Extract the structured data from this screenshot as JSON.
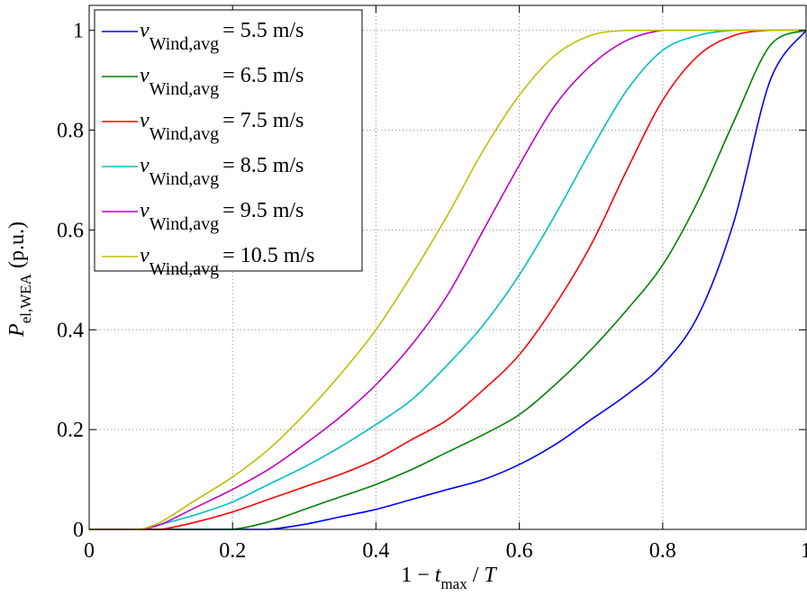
{
  "chart_data": {
    "type": "line",
    "title": "",
    "xlabel_parts": {
      "prefix": "1 − ",
      "t": "t",
      "t_sub": "max",
      "slash": " / ",
      "T": "T"
    },
    "ylabel_parts": {
      "P": "P",
      "P_sub": "el,WEA",
      "unit": " (p.u.)"
    },
    "xlim": [
      0,
      1
    ],
    "ylim": [
      0,
      1.05
    ],
    "xticks": [
      0,
      0.2,
      0.4,
      0.6,
      0.8,
      1
    ],
    "xtick_labels": [
      "0",
      "0.2",
      "0.4",
      "0.6",
      "0.8",
      "1"
    ],
    "yticks": [
      0,
      0.2,
      0.4,
      0.6,
      0.8,
      1
    ],
    "ytick_labels": [
      "0",
      "0.2",
      "0.4",
      "0.6",
      "0.8",
      "1"
    ],
    "grid": true,
    "legend_position": "top-left",
    "legend_var": "v",
    "legend_sub": "Wind,avg",
    "x": [
      0,
      0.05,
      0.07,
      0.1,
      0.15,
      0.2,
      0.25,
      0.3,
      0.35,
      0.4,
      0.45,
      0.5,
      0.55,
      0.6,
      0.65,
      0.7,
      0.75,
      0.8,
      0.85,
      0.9,
      0.95,
      1
    ],
    "series": [
      {
        "name": "= 5.5 m/s",
        "color": "#0000ff",
        "values": [
          0,
          0,
          0,
          0,
          0,
          0,
          0,
          0.01,
          0.025,
          0.04,
          0.06,
          0.08,
          0.1,
          0.13,
          0.17,
          0.22,
          0.27,
          0.33,
          0.43,
          0.62,
          0.9,
          1
        ]
      },
      {
        "name": "= 6.5 m/s",
        "color": "#008000",
        "values": [
          0,
          0,
          0,
          0,
          0,
          0,
          0.015,
          0.04,
          0.065,
          0.09,
          0.12,
          0.155,
          0.19,
          0.23,
          0.29,
          0.36,
          0.44,
          0.53,
          0.66,
          0.82,
          0.97,
          1
        ]
      },
      {
        "name": "= 7.5 m/s",
        "color": "#ff0000",
        "values": [
          0,
          0,
          0,
          0,
          0.015,
          0.035,
          0.06,
          0.085,
          0.11,
          0.14,
          0.18,
          0.22,
          0.28,
          0.35,
          0.45,
          0.57,
          0.72,
          0.86,
          0.95,
          0.99,
          1,
          1
        ]
      },
      {
        "name": "= 8.5 m/s",
        "color": "#00bfbf",
        "values": [
          0,
          0,
          0,
          0.01,
          0.03,
          0.055,
          0.09,
          0.125,
          0.165,
          0.21,
          0.26,
          0.33,
          0.41,
          0.51,
          0.63,
          0.76,
          0.88,
          0.96,
          0.99,
          1,
          1,
          1
        ]
      },
      {
        "name": "= 9.5 m/s",
        "color": "#bf00bf",
        "values": [
          0,
          0,
          0,
          0.01,
          0.045,
          0.08,
          0.12,
          0.17,
          0.225,
          0.29,
          0.37,
          0.47,
          0.6,
          0.73,
          0.85,
          0.93,
          0.98,
          1,
          1,
          1,
          1,
          1
        ]
      },
      {
        "name": "= 10.5 m/s",
        "color": "#bfbf00",
        "values": [
          0,
          0,
          0,
          0.015,
          0.06,
          0.105,
          0.16,
          0.23,
          0.31,
          0.4,
          0.51,
          0.63,
          0.76,
          0.87,
          0.95,
          0.99,
          1,
          1,
          1,
          1,
          1,
          1
        ]
      }
    ]
  }
}
